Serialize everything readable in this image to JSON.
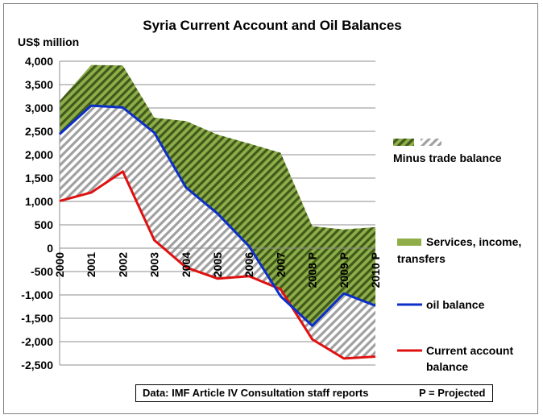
{
  "chart_data": {
    "type": "area",
    "title": "Syria Current Account and  Oil Balances",
    "ylabel": "US$ million",
    "xlabel": "",
    "ylim": [
      -2500,
      4000
    ],
    "y_ticks": [
      4000,
      3500,
      3000,
      2500,
      2000,
      1500,
      1000,
      500,
      0,
      -500,
      -1000,
      -1500,
      -2000,
      -2500
    ],
    "y_tick_labels": [
      "4,000",
      "3,500",
      "3,000",
      "2,500",
      "2,000",
      "1,500",
      "1,000",
      "500",
      "0",
      "-500",
      "-1,000",
      "-1,500",
      "-2,000",
      "-2,500"
    ],
    "categories": [
      "2000",
      "2001",
      "2002",
      "2003",
      "2004",
      "2005",
      "2006",
      "2007",
      "2008 P",
      "2009 P",
      "2010 P"
    ],
    "grid": "horizontal",
    "legend_position": "right",
    "series": [
      {
        "name": "Services, income, transfers",
        "kind": "area",
        "color": "#77933c",
        "values": [
          3150,
          3920,
          3910,
          2790,
          2720,
          2430,
          2240,
          2040,
          470,
          400,
          450
        ]
      },
      {
        "name": "Minus trade balance",
        "kind": "hatched-area",
        "color": "#a6a6a6"
      },
      {
        "name": "oil balance",
        "kind": "line",
        "color": "#0b2fc8",
        "values": [
          2440,
          3050,
          3010,
          2470,
          1300,
          740,
          40,
          -1030,
          -1660,
          -970,
          -1230
        ]
      },
      {
        "name": "Current account balance",
        "kind": "line",
        "color": "#e01010",
        "values": [
          1010,
          1190,
          1640,
          170,
          -410,
          -650,
          -600,
          -880,
          -1950,
          -2360,
          -2320
        ]
      }
    ],
    "legend_labels": {
      "minus_trade": "Minus trade balance",
      "services_line1": "Services, income,",
      "services_line2": "transfers",
      "oil": "oil balance",
      "ca_line1": "Current account",
      "ca_line2": "balance"
    },
    "footnote_source": "Data: IMF Article IV Consultation staff reports",
    "footnote_projected": "P = Projected"
  }
}
